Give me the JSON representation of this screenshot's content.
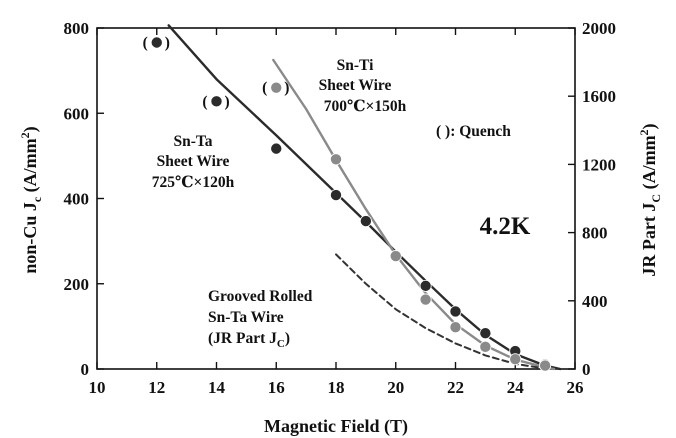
{
  "chart_data": {
    "type": "scatter",
    "xlabel": "Magnetic Field (T)",
    "ylabel_left": "non-Cu J",
    "ylabel_left_sub": "c",
    "ylabel_left_unit": " (A/mm",
    "ylabel_left_sup": "2",
    "ylabel_left_close": ")",
    "ylabel_right": "JR Part J",
    "ylabel_right_sub": "C",
    "ylabel_right_unit": " (A/mm",
    "ylabel_right_sup": "2",
    "ylabel_right_close": ")",
    "xlim": [
      10,
      26
    ],
    "ylim_left": [
      0,
      800
    ],
    "ylim_right": [
      0,
      2000
    ],
    "x_ticks": [
      10,
      12,
      14,
      16,
      18,
      20,
      22,
      24,
      26
    ],
    "y_left_ticks": [
      0,
      200,
      400,
      600,
      800
    ],
    "y_right_ticks": [
      0,
      400,
      800,
      1200,
      1600,
      2000
    ],
    "series": [
      {
        "name": "Sn-Ta Sheet Wire 725℃×120h",
        "color": "#2b2b2b",
        "points": [
          {
            "x": 12,
            "y": 766,
            "quench": true
          },
          {
            "x": 14,
            "y": 628,
            "quench": true
          },
          {
            "x": 16,
            "y": 517,
            "quench": false
          },
          {
            "x": 18,
            "y": 408,
            "quench": false
          },
          {
            "x": 19,
            "y": 347,
            "quench": false
          },
          {
            "x": 21,
            "y": 195,
            "quench": false
          },
          {
            "x": 22,
            "y": 135,
            "quench": false
          },
          {
            "x": 23,
            "y": 84,
            "quench": false
          },
          {
            "x": 24,
            "y": 42,
            "quench": false
          },
          {
            "x": 25,
            "y": 10,
            "quench": false
          }
        ],
        "fit": [
          [
            12.4,
            806
          ],
          [
            14,
            680
          ],
          [
            16,
            548
          ],
          [
            18,
            413
          ],
          [
            19,
            345
          ],
          [
            20,
            275
          ],
          [
            21,
            207
          ],
          [
            22,
            140
          ],
          [
            23,
            80
          ],
          [
            24,
            35
          ],
          [
            25,
            8
          ],
          [
            25.5,
            0
          ]
        ]
      },
      {
        "name": "Sn-Ti Sheet Wire 700℃×150h",
        "color": "#8a8a8a",
        "points": [
          {
            "x": 16,
            "y": 660,
            "quench": true
          },
          {
            "x": 18,
            "y": 492,
            "quench": false
          },
          {
            "x": 20,
            "y": 265,
            "quench": false
          },
          {
            "x": 21,
            "y": 163,
            "quench": false
          },
          {
            "x": 22,
            "y": 98,
            "quench": false
          },
          {
            "x": 23,
            "y": 52,
            "quench": false
          },
          {
            "x": 24,
            "y": 23,
            "quench": false
          },
          {
            "x": 25,
            "y": 8,
            "quench": false
          }
        ],
        "fit": [
          [
            15.9,
            725
          ],
          [
            17,
            610
          ],
          [
            18,
            490
          ],
          [
            19,
            375
          ],
          [
            20,
            268
          ],
          [
            21,
            178
          ],
          [
            22,
            105
          ],
          [
            23,
            55
          ],
          [
            24,
            22
          ],
          [
            25,
            4
          ],
          [
            25.3,
            0
          ]
        ]
      },
      {
        "name": "Grooved Rolled Sn-Ta Wire (JR Part J_C)",
        "color": "#333333",
        "dashed": true,
        "axis": "right",
        "fit": [
          [
            18,
            672
          ],
          [
            19,
            500
          ],
          [
            20,
            350
          ],
          [
            21,
            240
          ],
          [
            22,
            150
          ],
          [
            23,
            80
          ],
          [
            24,
            30
          ],
          [
            25,
            3
          ]
        ]
      }
    ],
    "annotations": {
      "snta_line1": "Sn-Ta",
      "snta_line2": "Sheet Wire",
      "snta_line3": "725℃×120h",
      "snti_line1": "Sn-Ti",
      "snti_line2": "Sheet Wire",
      "snti_line3": "700℃×150h",
      "quench_note": "(   ): Quench",
      "temperature": "4.2K",
      "grooved_line1": "Grooved Rolled",
      "grooved_line2": "Sn-Ta Wire",
      "grooved_line3": "(JR Part J",
      "grooved_line3_sub": "C",
      "grooved_line3_close": ")",
      "paren_open": "(",
      "paren_close": ")"
    }
  }
}
